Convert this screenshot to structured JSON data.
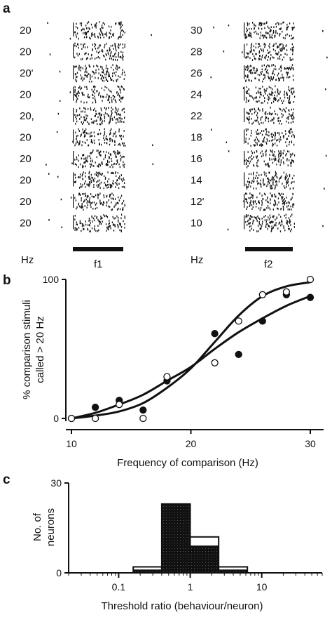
{
  "colors": {
    "ink": "#111111",
    "paper": "#ffffff",
    "hatch": "#555555"
  },
  "chart_data": [
    {
      "panel": "a",
      "type": "raster",
      "columns": [
        {
          "stimulus_label": "f1",
          "unit_label": "Hz",
          "row_values": [
            "20",
            "20",
            "20'",
            "20",
            "20,",
            "20",
            "20",
            "20",
            "20",
            "20"
          ]
        },
        {
          "stimulus_label": "f2",
          "unit_label": "Hz",
          "row_values": [
            "30",
            "28",
            "26",
            "24",
            "22",
            "18",
            "16",
            "14",
            "12'",
            "10"
          ]
        }
      ]
    },
    {
      "panel": "b",
      "type": "line",
      "xlabel": "Frequency of comparison (Hz)",
      "ylabel": "% comparison stimuli called > 20 Hz",
      "xlim": [
        10,
        30
      ],
      "ylim": [
        0,
        100
      ],
      "xticks": [
        "10",
        "20",
        "30"
      ],
      "yticks": [
        "0",
        "100"
      ],
      "series": [
        {
          "marker": "filled-circle",
          "x": [
            10,
            12,
            14,
            16,
            18,
            22,
            24,
            26,
            28,
            30
          ],
          "y": [
            0,
            8,
            13,
            6,
            27,
            61,
            46,
            70,
            89,
            87
          ],
          "fit": [
            [
              10,
              0
            ],
            [
              12,
              4
            ],
            [
              14,
              10
            ],
            [
              16,
              17
            ],
            [
              18,
              27
            ],
            [
              20,
              37
            ],
            [
              22,
              50
            ],
            [
              24,
              62
            ],
            [
              26,
              72
            ],
            [
              28,
              81
            ],
            [
              30,
              88
            ]
          ]
        },
        {
          "marker": "open-circle",
          "x": [
            10,
            12,
            14,
            16,
            18,
            22,
            24,
            26,
            28,
            30
          ],
          "y": [
            0,
            0,
            10,
            0,
            30,
            40,
            70,
            89,
            91,
            100
          ],
          "fit": [
            [
              10,
              0
            ],
            [
              12,
              2
            ],
            [
              14,
              5
            ],
            [
              16,
              11
            ],
            [
              18,
              22
            ],
            [
              20,
              36
            ],
            [
              22,
              55
            ],
            [
              24,
              74
            ],
            [
              26,
              88
            ],
            [
              28,
              95
            ],
            [
              30,
              98
            ]
          ]
        }
      ]
    },
    {
      "panel": "c",
      "type": "bar",
      "xlabel": "Threshold ratio (behaviour/neuron)",
      "ylabel": "No. of neurons",
      "xscale": "log",
      "xlim": [
        0.02,
        70
      ],
      "ylim": [
        0,
        30
      ],
      "xticks": [
        "0.1",
        "1",
        "10"
      ],
      "yticks": [
        "0",
        "30"
      ],
      "bins": [
        {
          "from": 0.16,
          "to": 0.4,
          "open": 2,
          "filled": 1
        },
        {
          "from": 0.4,
          "to": 1.0,
          "open": 23,
          "filled": 23
        },
        {
          "from": 1.0,
          "to": 2.5,
          "open": 12,
          "filled": 9
        },
        {
          "from": 2.5,
          "to": 6.3,
          "open": 2,
          "filled": 1
        }
      ]
    }
  ]
}
